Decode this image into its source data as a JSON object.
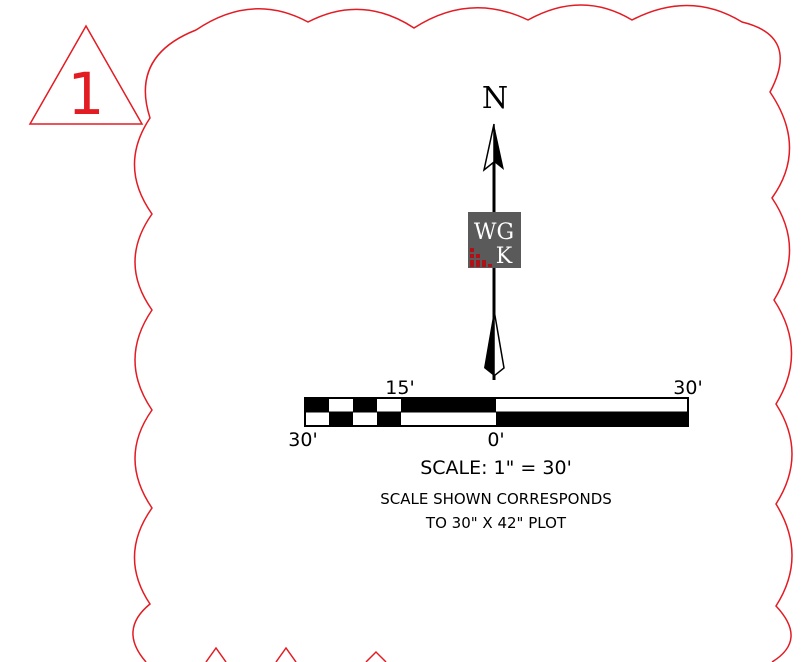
{
  "revision": {
    "number": "1"
  },
  "north_arrow": {
    "label": "N"
  },
  "logo": {
    "line1": "WG",
    "line2": "K"
  },
  "scale_bar": {
    "top_left_label": "15'",
    "top_right_label": "30'",
    "bottom_left_label": "30'",
    "bottom_mid_label": "0'"
  },
  "notes": {
    "scale": "SCALE: 1\" = 30'",
    "line1": "SCALE SHOWN CORRESPONDS",
    "line2": "TO 30\" X 42\" PLOT"
  },
  "colors": {
    "revision": "#e31b23",
    "logo_bg": "#5a5a5a",
    "logo_accent": "#b01116"
  }
}
